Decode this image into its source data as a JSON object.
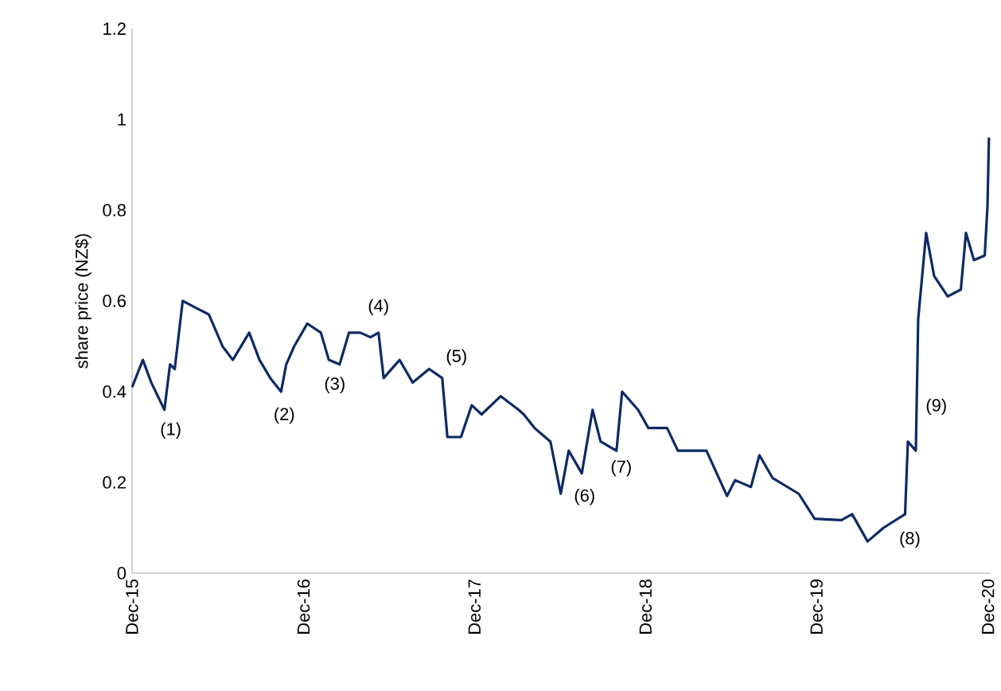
{
  "chart_data": {
    "type": "line",
    "ylabel": "share price (NZ$)",
    "x": [
      "2015-12-01",
      "2015-12-24",
      "2016-01-11",
      "2016-02-08",
      "2016-02-20",
      "2016-03-01",
      "2016-03-18",
      "2016-04-15",
      "2016-05-13",
      "2016-06-11",
      "2016-07-03",
      "2016-08-07",
      "2016-08-29",
      "2016-09-21",
      "2016-10-14",
      "2016-10-25",
      "2016-11-11",
      "2016-12-09",
      "2017-01-07",
      "2017-01-24",
      "2017-02-16",
      "2017-03-08",
      "2017-04-01",
      "2017-04-23",
      "2017-05-10",
      "2017-05-21",
      "2017-06-24",
      "2017-07-22",
      "2017-08-26",
      "2017-09-23",
      "2017-10-04",
      "2017-11-02",
      "2017-11-25",
      "2017-12-16",
      "2018-01-26",
      "2018-03-05",
      "2018-03-16",
      "2018-04-08",
      "2018-05-12",
      "2018-06-03",
      "2018-06-20",
      "2018-07-18",
      "2018-08-10",
      "2018-08-27",
      "2018-09-30",
      "2018-10-12",
      "2018-11-15",
      "2018-12-07",
      "2019-01-16",
      "2019-02-08",
      "2019-04-10",
      "2019-05-24",
      "2019-06-10",
      "2019-07-14",
      "2019-08-01",
      "2019-08-29",
      "2019-10-24",
      "2019-11-27",
      "2020-01-23",
      "2020-02-15",
      "2020-03-19",
      "2020-04-22",
      "2020-06-07",
      "2020-06-13",
      "2020-06-30",
      "2020-07-05",
      "2020-07-22",
      "2020-08-08",
      "2020-09-06",
      "2020-10-04",
      "2020-10-15",
      "2020-11-01",
      "2020-11-24",
      "2020-11-30",
      "2020-12-03"
    ],
    "values": [
      0.41,
      0.47,
      0.42,
      0.36,
      0.46,
      0.45,
      0.6,
      0.585,
      0.57,
      0.5,
      0.47,
      0.53,
      0.47,
      0.43,
      0.4,
      0.46,
      0.5,
      0.55,
      0.53,
      0.47,
      0.46,
      0.53,
      0.53,
      0.52,
      0.53,
      0.43,
      0.47,
      0.42,
      0.45,
      0.43,
      0.3,
      0.3,
      0.37,
      0.35,
      0.39,
      0.36,
      0.35,
      0.32,
      0.29,
      0.175,
      0.27,
      0.22,
      0.36,
      0.29,
      0.27,
      0.4,
      0.36,
      0.32,
      0.32,
      0.27,
      0.27,
      0.17,
      0.205,
      0.19,
      0.26,
      0.21,
      0.175,
      0.12,
      0.117,
      0.13,
      0.07,
      0.1,
      0.13,
      0.29,
      0.27,
      0.56,
      0.75,
      0.655,
      0.61,
      0.625,
      0.75,
      0.69,
      0.7,
      0.81,
      0.96
    ],
    "color": "#0d2a66",
    "xlim": [
      "2015-12-01",
      "2020-12-05"
    ],
    "xticks": [
      {
        "value": "2015-12-01",
        "label": "Dec-15"
      },
      {
        "value": "2016-12-01",
        "label": "Dec-16"
      },
      {
        "value": "2017-12-01",
        "label": "Dec-17"
      },
      {
        "value": "2018-12-01",
        "label": "Dec-18"
      },
      {
        "value": "2019-12-01",
        "label": "Dec-19"
      },
      {
        "value": "2020-12-01",
        "label": "Dec-20"
      }
    ],
    "ylim": [
      0,
      1.2
    ],
    "yticks": [
      0,
      0.2,
      0.4,
      0.6,
      0.8,
      1,
      1.2
    ],
    "grid": false,
    "marker": "none",
    "line_style": "solid",
    "annotations": [
      {
        "text": "(1)",
        "x": "2016-02-08",
        "y": 0.36
      },
      {
        "text": "(2)",
        "x": "2016-10-14",
        "y": 0.4
      },
      {
        "text": "(3)",
        "x": "2017-02-16",
        "y": 0.46
      },
      {
        "text": "(4)",
        "x": "2017-05-10",
        "y": 0.53
      },
      {
        "text": "(5)",
        "x": "2017-09-23",
        "y": 0.43
      },
      {
        "text": "(6)",
        "x": "2018-06-03",
        "y": 0.175
      },
      {
        "text": "(7)",
        "x": "2018-09-30",
        "y": 0.27
      },
      {
        "text": "(8)",
        "x": "2020-06-07",
        "y": 0.13
      },
      {
        "text": "(9)",
        "x": "2020-07-03",
        "y": 0.444
      }
    ]
  }
}
